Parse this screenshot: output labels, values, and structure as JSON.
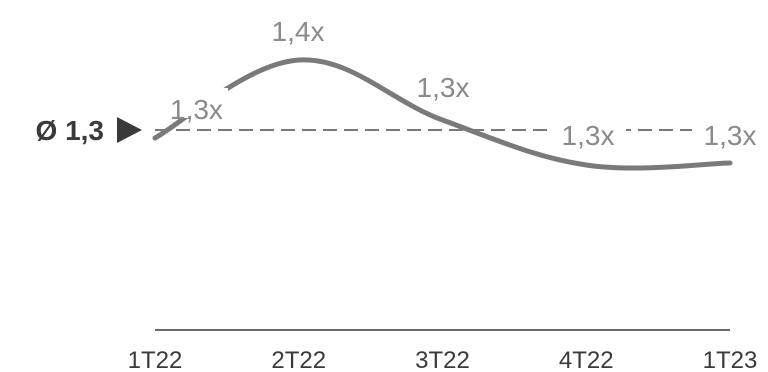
{
  "chart_data": {
    "type": "line",
    "categories": [
      "1T22",
      "2T22",
      "3T22",
      "4T22",
      "1T23"
    ],
    "series": [
      {
        "values": [
          1.3,
          1.4,
          1.3,
          1.3,
          1.3
        ],
        "data_labels": [
          "1,3x",
          "1,4x",
          "1,3x",
          "1,3x",
          "1,3x"
        ]
      }
    ],
    "average": {
      "value": 1.3,
      "label": "Ø 1,3"
    },
    "grid": false,
    "legend": "none",
    "colors": {
      "line": "#7a7a7a",
      "average_line": "#7a7a7a",
      "axis": "#3a3a3a",
      "label": "#8a8a8a",
      "tick": "#3a3a3a"
    }
  }
}
